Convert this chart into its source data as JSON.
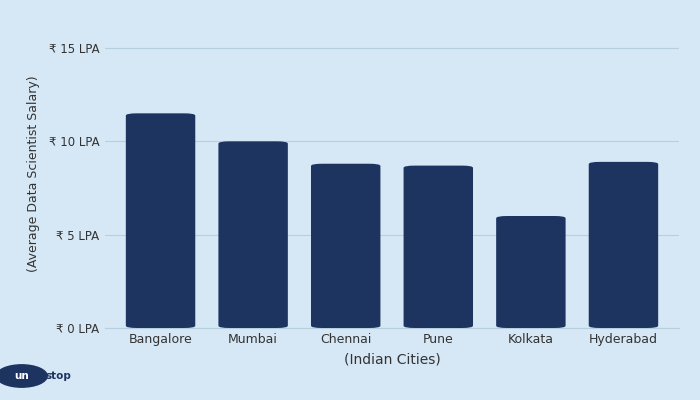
{
  "cities": [
    "Bangalore",
    "Mumbai",
    "Chennai",
    "Pune",
    "Kolkata",
    "Hyderabad"
  ],
  "salaries": [
    11.5,
    10.0,
    8.8,
    8.7,
    6.0,
    8.9
  ],
  "bar_color": "#1d3461",
  "background_color": "#d6e8f5",
  "ylabel": "(Average Data Scientist Salary)",
  "xlabel": "(Indian Cities)",
  "ytick_labels": [
    "₹ 0 LPA",
    "₹ 5 LPA",
    "₹ 10 LPA",
    "₹ 15 LPA"
  ],
  "ytick_values": [
    0,
    5,
    10,
    15
  ],
  "ylim": [
    0,
    16.5
  ],
  "grid_color": "#b8cfe0",
  "logo_circle_color": "#1d3461",
  "axis_line_color": "#b8cfe0",
  "bar_width": 0.75,
  "figsize": [
    7.0,
    4.0
  ],
  "dpi": 100
}
